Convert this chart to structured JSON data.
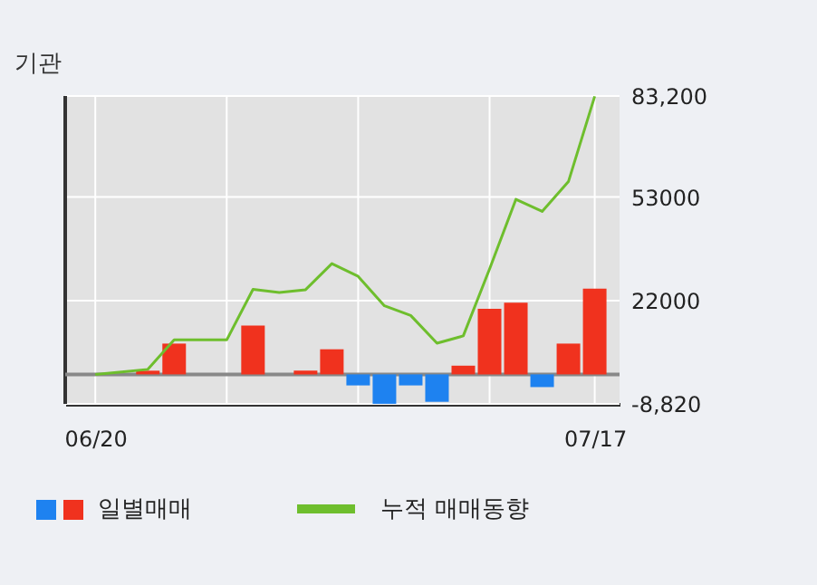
{
  "chart_data": {
    "type": "bar",
    "title": "기관",
    "categories": [
      "06/20",
      null,
      null,
      null,
      null,
      null,
      null,
      null,
      null,
      null,
      null,
      null,
      null,
      null,
      null,
      null,
      null,
      null,
      null,
      "07/17"
    ],
    "ylim": [
      -8820,
      83200
    ],
    "yticks": [
      {
        "value": 83200,
        "label": "83,200"
      },
      53000,
      22000,
      {
        "value": -8820,
        "label": "-8,820"
      }
    ],
    "grid": true,
    "legend": "bottom",
    "series": [
      {
        "name": "일별매매",
        "colors": [
          "#f0321e",
          "#f0321e",
          "#f0321e",
          "#f0321e",
          "#f0321e",
          "#f0321e",
          "#f0321e",
          "#f0321e",
          "#f0321e",
          "#f0321e",
          "#1e82f0",
          "#1e82f0",
          "#1e82f0",
          "#1e82f0",
          "#f0321e",
          "#f0321e",
          "#f0321e",
          "#1e82f0",
          "#f0321e",
          "#f0321e"
        ],
        "values": [
          0,
          0,
          1100,
          9200,
          0,
          0,
          14600,
          0,
          1100,
          7500,
          -3300,
          -8800,
          -3300,
          -8200,
          2600,
          19600,
          21400,
          -3800,
          9200,
          25600
        ]
      },
      {
        "name": "누적 매매동향",
        "type": "line",
        "color": "#6ebe2d",
        "values": [
          0,
          700,
          1500,
          10300,
          10300,
          10300,
          25400,
          24500,
          25300,
          33100,
          29300,
          20500,
          17600,
          9300,
          11500,
          31500,
          52300,
          48700,
          57600,
          83100
        ]
      }
    ]
  }
}
